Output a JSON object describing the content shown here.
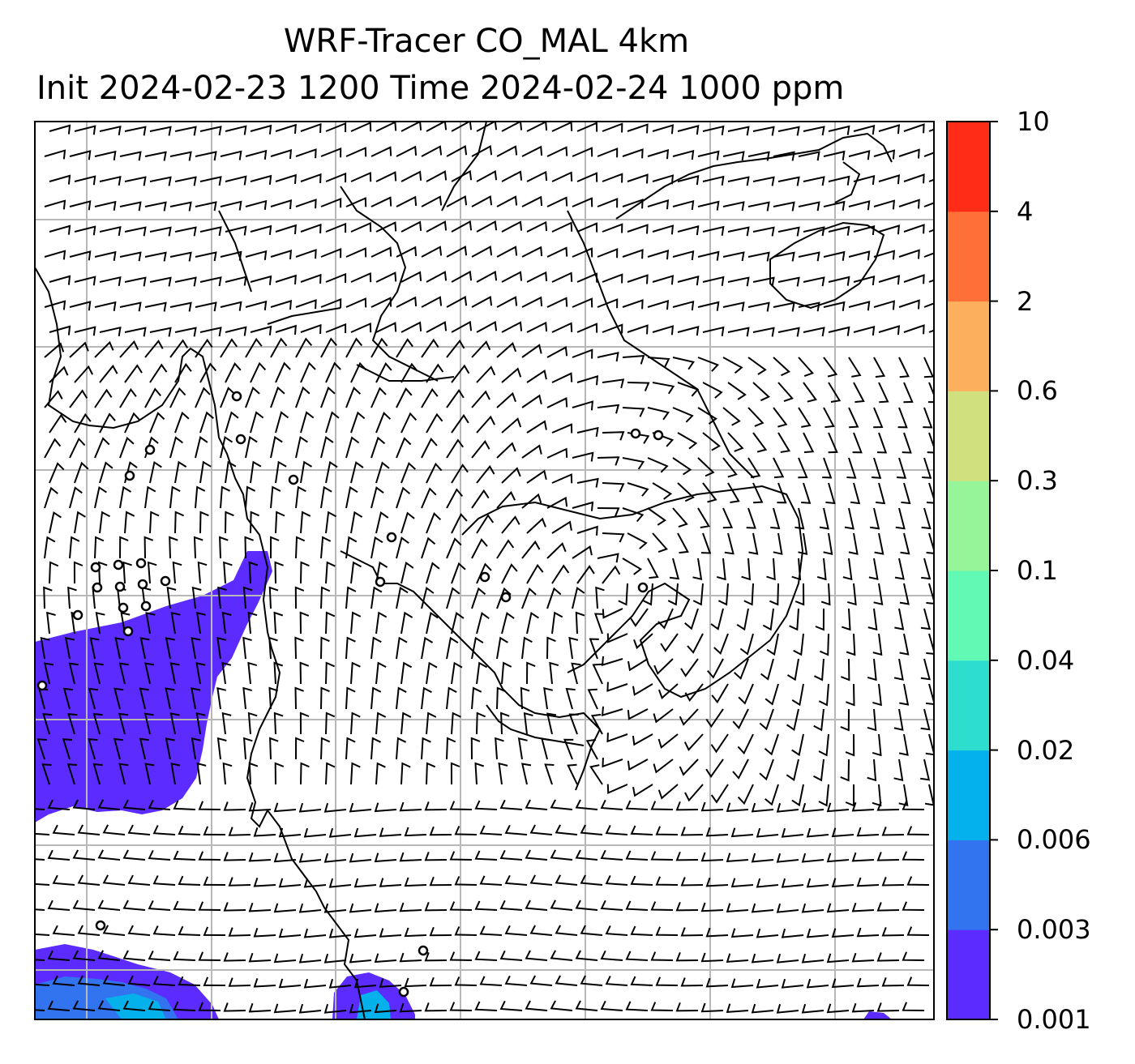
{
  "title": {
    "line1": "WRF-Tracer CO_MAL 4km",
    "line2": "Init 2024-02-23 1200 Time 2024-02-24 1000 ppm"
  },
  "colorbar": {
    "levels": [
      "0.001",
      "0.003",
      "0.006",
      "0.02",
      "0.04",
      "0.1",
      "0.3",
      "0.6",
      "2",
      "4",
      "10"
    ],
    "colors": [
      "#5b2bff",
      "#3273f0",
      "#04b1ea",
      "#2ddecf",
      "#62f9b5",
      "#95f598",
      "#d0e07e",
      "#fcb05e",
      "#ff7038",
      "#ff2d17"
    ]
  },
  "map": {
    "field": "CO_MAL tracer concentration",
    "wind_symbol": "barbs",
    "gridlines": true,
    "regions_with_concentration": [
      "west-center",
      "southwest",
      "south-center"
    ]
  }
}
